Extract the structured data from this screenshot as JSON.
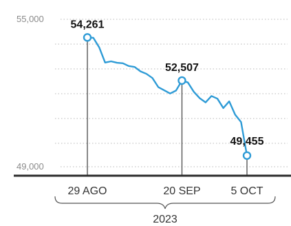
{
  "chart_data": {
    "type": "line",
    "y_ticks": [
      "55,000",
      "49,000"
    ],
    "ylim": [
      49000,
      55000
    ],
    "x_ticks": [
      {
        "label": "29 AGO",
        "index": 0
      },
      {
        "label": "20 SEP",
        "index": 16
      },
      {
        "label": "5 OCT",
        "index": 27
      }
    ],
    "x_group_label": "2023",
    "grid": true,
    "series": [
      {
        "values": [
          54261,
          54250,
          53860,
          53240,
          53290,
          53230,
          53210,
          53100,
          53060,
          52880,
          52780,
          52610,
          52240,
          52110,
          51980,
          52100,
          52507,
          52430,
          52050,
          51790,
          51620,
          51880,
          51770,
          51390,
          51660,
          51120,
          50820,
          49455
        ],
        "color": "#2e9bd6"
      }
    ],
    "annotations": [
      {
        "index": 0,
        "value": 54261,
        "label": "54,261"
      },
      {
        "index": 16,
        "value": 52507,
        "label": "52,507"
      },
      {
        "index": 27,
        "value": 49455,
        "label": "49,455"
      }
    ]
  }
}
